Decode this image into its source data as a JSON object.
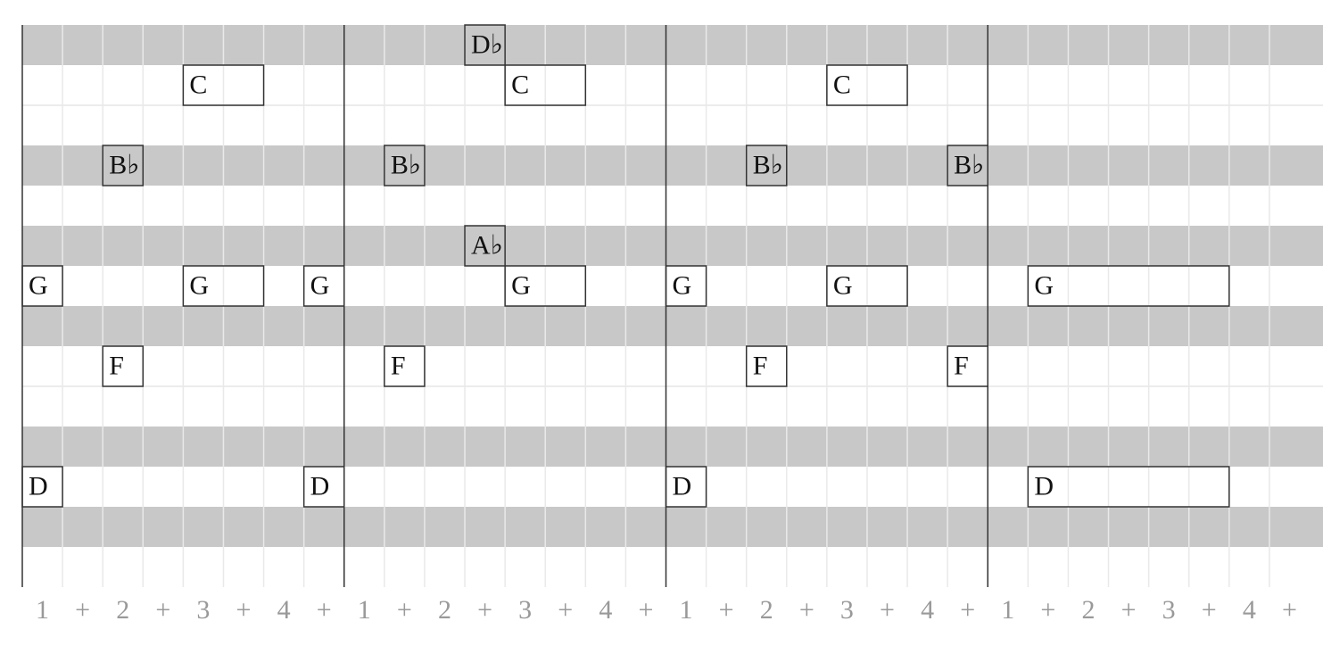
{
  "notes": [
    {
      "label": "C",
      "row": 1,
      "start": 4,
      "duration": 2
    },
    {
      "label": "B♭",
      "row": 3,
      "start": 2,
      "duration": 1
    },
    {
      "label": "G",
      "row": 6,
      "start": 0,
      "duration": 1
    },
    {
      "label": "G",
      "row": 6,
      "start": 4,
      "duration": 2
    },
    {
      "label": "G",
      "row": 6,
      "start": 7,
      "duration": 1
    },
    {
      "label": "F",
      "row": 8,
      "start": 2,
      "duration": 1
    },
    {
      "label": "D",
      "row": 11,
      "start": 0,
      "duration": 1
    },
    {
      "label": "D",
      "row": 11,
      "start": 7,
      "duration": 1
    },
    {
      "label": "D♭",
      "row": 0,
      "start": 11,
      "duration": 1
    },
    {
      "label": "C",
      "row": 1,
      "start": 12,
      "duration": 2
    },
    {
      "label": "B♭",
      "row": 3,
      "start": 9,
      "duration": 1
    },
    {
      "label": "A♭",
      "row": 5,
      "start": 11,
      "duration": 1
    },
    {
      "label": "G",
      "row": 6,
      "start": 12,
      "duration": 2
    },
    {
      "label": "F",
      "row": 8,
      "start": 9,
      "duration": 1
    },
    {
      "label": "C",
      "row": 1,
      "start": 20,
      "duration": 2
    },
    {
      "label": "B♭",
      "row": 3,
      "start": 18,
      "duration": 1
    },
    {
      "label": "B♭",
      "row": 3,
      "start": 23,
      "duration": 1
    },
    {
      "label": "G",
      "row": 6,
      "start": 16,
      "duration": 1
    },
    {
      "label": "G",
      "row": 6,
      "start": 20,
      "duration": 2
    },
    {
      "label": "F",
      "row": 8,
      "start": 18,
      "duration": 1
    },
    {
      "label": "F",
      "row": 8,
      "start": 23,
      "duration": 1
    },
    {
      "label": "D",
      "row": 11,
      "start": 16,
      "duration": 1
    },
    {
      "label": "G",
      "row": 6,
      "start": 25,
      "duration": 5
    },
    {
      "label": "D",
      "row": 11,
      "start": 25,
      "duration": 5
    }
  ],
  "counts": [
    "1",
    "+",
    "2",
    "+",
    "3",
    "+",
    "4",
    "+",
    "1",
    "+",
    "2",
    "+",
    "3",
    "+",
    "4",
    "+",
    "1",
    "+",
    "2",
    "+",
    "3",
    "+",
    "4",
    "+",
    "1",
    "+",
    "2",
    "+",
    "3",
    "+",
    "4",
    "+"
  ]
}
